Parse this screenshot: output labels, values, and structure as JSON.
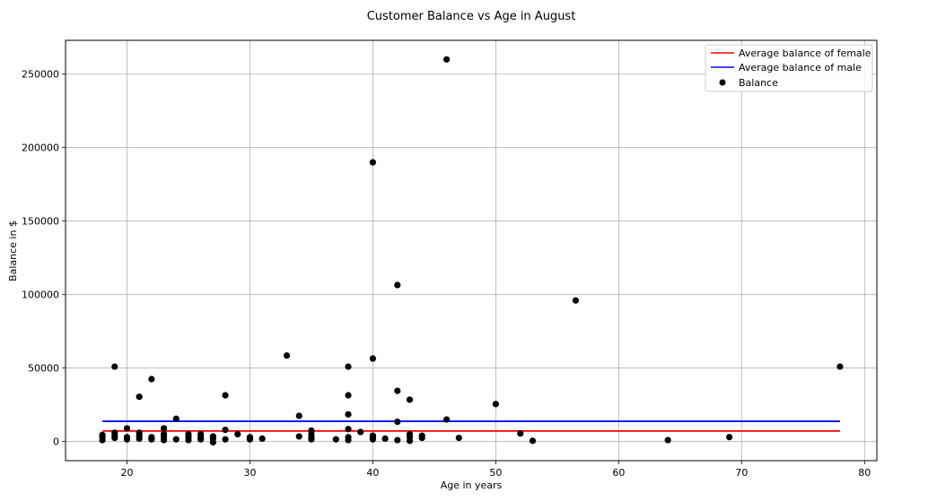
{
  "chart_data": {
    "type": "scatter",
    "title": "Customer Balance vs Age in August",
    "xlabel": "Age in years",
    "ylabel": "Balance in $",
    "xlim": [
      15,
      81
    ],
    "ylim": [
      -13000,
      273000
    ],
    "xticks": [
      20,
      30,
      40,
      50,
      60,
      70,
      80
    ],
    "yticks": [
      0,
      50000,
      100000,
      150000,
      200000,
      250000
    ],
    "grid": true,
    "legend_position": "top-right",
    "lines": [
      {
        "name": "Average balance of female",
        "color": "#ff0000",
        "x": [
          18,
          78
        ],
        "y": [
          7200,
          7200
        ]
      },
      {
        "name": "Average balance of male",
        "color": "#0000ff",
        "x": [
          18,
          78
        ],
        "y": [
          13800,
          13800
        ]
      }
    ],
    "scatter": {
      "name": "Balance",
      "color": "#000000",
      "points": [
        [
          18,
          1000
        ],
        [
          18,
          3000
        ],
        [
          18,
          4500
        ],
        [
          19,
          2500
        ],
        [
          19,
          4000
        ],
        [
          19,
          6000
        ],
        [
          19,
          51000
        ],
        [
          20,
          1500
        ],
        [
          20,
          3000
        ],
        [
          20,
          9000
        ],
        [
          21,
          2000
        ],
        [
          21,
          4000
        ],
        [
          21,
          6000
        ],
        [
          21,
          30500
        ],
        [
          22,
          1500
        ],
        [
          22,
          3000
        ],
        [
          22,
          42500
        ],
        [
          23,
          1000
        ],
        [
          23,
          3000
        ],
        [
          23,
          5000
        ],
        [
          23,
          9000
        ],
        [
          24,
          1500
        ],
        [
          24,
          15500
        ],
        [
          25,
          1000
        ],
        [
          25,
          3000
        ],
        [
          25,
          5000
        ],
        [
          26,
          1500
        ],
        [
          26,
          3000
        ],
        [
          26,
          5000
        ],
        [
          27,
          -500
        ],
        [
          27,
          2000
        ],
        [
          27,
          3500
        ],
        [
          28,
          1500
        ],
        [
          28,
          8000
        ],
        [
          28,
          31500
        ],
        [
          29,
          5000
        ],
        [
          30,
          1500
        ],
        [
          30,
          3000
        ],
        [
          31,
          2000
        ],
        [
          33,
          58500
        ],
        [
          34,
          3500
        ],
        [
          34,
          17500
        ],
        [
          35,
          1500
        ],
        [
          35,
          3000
        ],
        [
          35,
          5000
        ],
        [
          35,
          7500
        ],
        [
          37,
          1500
        ],
        [
          38,
          1000
        ],
        [
          38,
          3000
        ],
        [
          38,
          8500
        ],
        [
          38,
          18500
        ],
        [
          38,
          31500
        ],
        [
          38,
          51000
        ],
        [
          39,
          6500
        ],
        [
          40,
          1500
        ],
        [
          40,
          3000
        ],
        [
          40,
          4000
        ],
        [
          40,
          56500
        ],
        [
          40,
          190000
        ],
        [
          41,
          2000
        ],
        [
          42,
          1000
        ],
        [
          42,
          13500
        ],
        [
          42,
          34500
        ],
        [
          42,
          106500
        ],
        [
          43,
          500
        ],
        [
          43,
          3000
        ],
        [
          43,
          5000
        ],
        [
          43,
          28500
        ],
        [
          44,
          2500
        ],
        [
          44,
          4000
        ],
        [
          46,
          15000
        ],
        [
          46,
          260000
        ],
        [
          47,
          2500
        ],
        [
          50,
          25500
        ],
        [
          52,
          5500
        ],
        [
          53,
          500
        ],
        [
          56.5,
          96000
        ],
        [
          64,
          1000
        ],
        [
          69,
          3000
        ],
        [
          78,
          51000
        ]
      ]
    }
  }
}
